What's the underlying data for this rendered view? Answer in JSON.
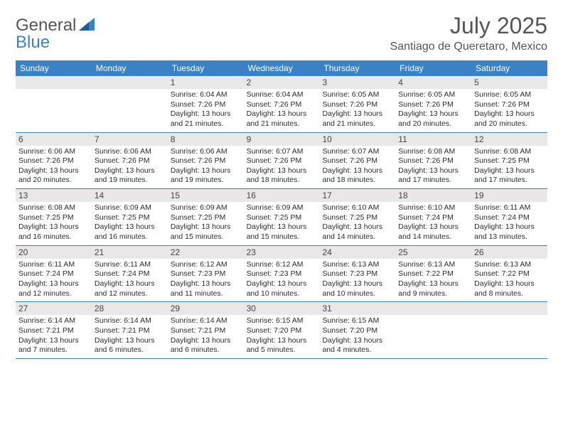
{
  "logo": {
    "text_general": "General",
    "text_blue": "Blue"
  },
  "header": {
    "title": "July 2025",
    "subtitle": "Santiago de Queretaro, Mexico"
  },
  "colors": {
    "header_bar": "#3b82c4",
    "daynum_bg": "#e8e8e8",
    "rule": "#3b82c4",
    "text": "#3a3a3a",
    "title_text": "#555"
  },
  "day_names": [
    "Sunday",
    "Monday",
    "Tuesday",
    "Wednesday",
    "Thursday",
    "Friday",
    "Saturday"
  ],
  "weeks": [
    [
      {
        "n": "",
        "lines": []
      },
      {
        "n": "",
        "lines": []
      },
      {
        "n": "1",
        "lines": [
          "Sunrise: 6:04 AM",
          "Sunset: 7:26 PM",
          "Daylight: 13 hours",
          "and 21 minutes."
        ]
      },
      {
        "n": "2",
        "lines": [
          "Sunrise: 6:04 AM",
          "Sunset: 7:26 PM",
          "Daylight: 13 hours",
          "and 21 minutes."
        ]
      },
      {
        "n": "3",
        "lines": [
          "Sunrise: 6:05 AM",
          "Sunset: 7:26 PM",
          "Daylight: 13 hours",
          "and 21 minutes."
        ]
      },
      {
        "n": "4",
        "lines": [
          "Sunrise: 6:05 AM",
          "Sunset: 7:26 PM",
          "Daylight: 13 hours",
          "and 20 minutes."
        ]
      },
      {
        "n": "5",
        "lines": [
          "Sunrise: 6:05 AM",
          "Sunset: 7:26 PM",
          "Daylight: 13 hours",
          "and 20 minutes."
        ]
      }
    ],
    [
      {
        "n": "6",
        "lines": [
          "Sunrise: 6:06 AM",
          "Sunset: 7:26 PM",
          "Daylight: 13 hours",
          "and 20 minutes."
        ]
      },
      {
        "n": "7",
        "lines": [
          "Sunrise: 6:06 AM",
          "Sunset: 7:26 PM",
          "Daylight: 13 hours",
          "and 19 minutes."
        ]
      },
      {
        "n": "8",
        "lines": [
          "Sunrise: 6:06 AM",
          "Sunset: 7:26 PM",
          "Daylight: 13 hours",
          "and 19 minutes."
        ]
      },
      {
        "n": "9",
        "lines": [
          "Sunrise: 6:07 AM",
          "Sunset: 7:26 PM",
          "Daylight: 13 hours",
          "and 18 minutes."
        ]
      },
      {
        "n": "10",
        "lines": [
          "Sunrise: 6:07 AM",
          "Sunset: 7:26 PM",
          "Daylight: 13 hours",
          "and 18 minutes."
        ]
      },
      {
        "n": "11",
        "lines": [
          "Sunrise: 6:08 AM",
          "Sunset: 7:26 PM",
          "Daylight: 13 hours",
          "and 17 minutes."
        ]
      },
      {
        "n": "12",
        "lines": [
          "Sunrise: 6:08 AM",
          "Sunset: 7:25 PM",
          "Daylight: 13 hours",
          "and 17 minutes."
        ]
      }
    ],
    [
      {
        "n": "13",
        "lines": [
          "Sunrise: 6:08 AM",
          "Sunset: 7:25 PM",
          "Daylight: 13 hours",
          "and 16 minutes."
        ]
      },
      {
        "n": "14",
        "lines": [
          "Sunrise: 6:09 AM",
          "Sunset: 7:25 PM",
          "Daylight: 13 hours",
          "and 16 minutes."
        ]
      },
      {
        "n": "15",
        "lines": [
          "Sunrise: 6:09 AM",
          "Sunset: 7:25 PM",
          "Daylight: 13 hours",
          "and 15 minutes."
        ]
      },
      {
        "n": "16",
        "lines": [
          "Sunrise: 6:09 AM",
          "Sunset: 7:25 PM",
          "Daylight: 13 hours",
          "and 15 minutes."
        ]
      },
      {
        "n": "17",
        "lines": [
          "Sunrise: 6:10 AM",
          "Sunset: 7:25 PM",
          "Daylight: 13 hours",
          "and 14 minutes."
        ]
      },
      {
        "n": "18",
        "lines": [
          "Sunrise: 6:10 AM",
          "Sunset: 7:24 PM",
          "Daylight: 13 hours",
          "and 14 minutes."
        ]
      },
      {
        "n": "19",
        "lines": [
          "Sunrise: 6:11 AM",
          "Sunset: 7:24 PM",
          "Daylight: 13 hours",
          "and 13 minutes."
        ]
      }
    ],
    [
      {
        "n": "20",
        "lines": [
          "Sunrise: 6:11 AM",
          "Sunset: 7:24 PM",
          "Daylight: 13 hours",
          "and 12 minutes."
        ]
      },
      {
        "n": "21",
        "lines": [
          "Sunrise: 6:11 AM",
          "Sunset: 7:24 PM",
          "Daylight: 13 hours",
          "and 12 minutes."
        ]
      },
      {
        "n": "22",
        "lines": [
          "Sunrise: 6:12 AM",
          "Sunset: 7:23 PM",
          "Daylight: 13 hours",
          "and 11 minutes."
        ]
      },
      {
        "n": "23",
        "lines": [
          "Sunrise: 6:12 AM",
          "Sunset: 7:23 PM",
          "Daylight: 13 hours",
          "and 10 minutes."
        ]
      },
      {
        "n": "24",
        "lines": [
          "Sunrise: 6:13 AM",
          "Sunset: 7:23 PM",
          "Daylight: 13 hours",
          "and 10 minutes."
        ]
      },
      {
        "n": "25",
        "lines": [
          "Sunrise: 6:13 AM",
          "Sunset: 7:22 PM",
          "Daylight: 13 hours",
          "and 9 minutes."
        ]
      },
      {
        "n": "26",
        "lines": [
          "Sunrise: 6:13 AM",
          "Sunset: 7:22 PM",
          "Daylight: 13 hours",
          "and 8 minutes."
        ]
      }
    ],
    [
      {
        "n": "27",
        "lines": [
          "Sunrise: 6:14 AM",
          "Sunset: 7:21 PM",
          "Daylight: 13 hours",
          "and 7 minutes."
        ]
      },
      {
        "n": "28",
        "lines": [
          "Sunrise: 6:14 AM",
          "Sunset: 7:21 PM",
          "Daylight: 13 hours",
          "and 6 minutes."
        ]
      },
      {
        "n": "29",
        "lines": [
          "Sunrise: 6:14 AM",
          "Sunset: 7:21 PM",
          "Daylight: 13 hours",
          "and 6 minutes."
        ]
      },
      {
        "n": "30",
        "lines": [
          "Sunrise: 6:15 AM",
          "Sunset: 7:20 PM",
          "Daylight: 13 hours",
          "and 5 minutes."
        ]
      },
      {
        "n": "31",
        "lines": [
          "Sunrise: 6:15 AM",
          "Sunset: 7:20 PM",
          "Daylight: 13 hours",
          "and 4 minutes."
        ]
      },
      {
        "n": "",
        "lines": []
      },
      {
        "n": "",
        "lines": []
      }
    ]
  ]
}
